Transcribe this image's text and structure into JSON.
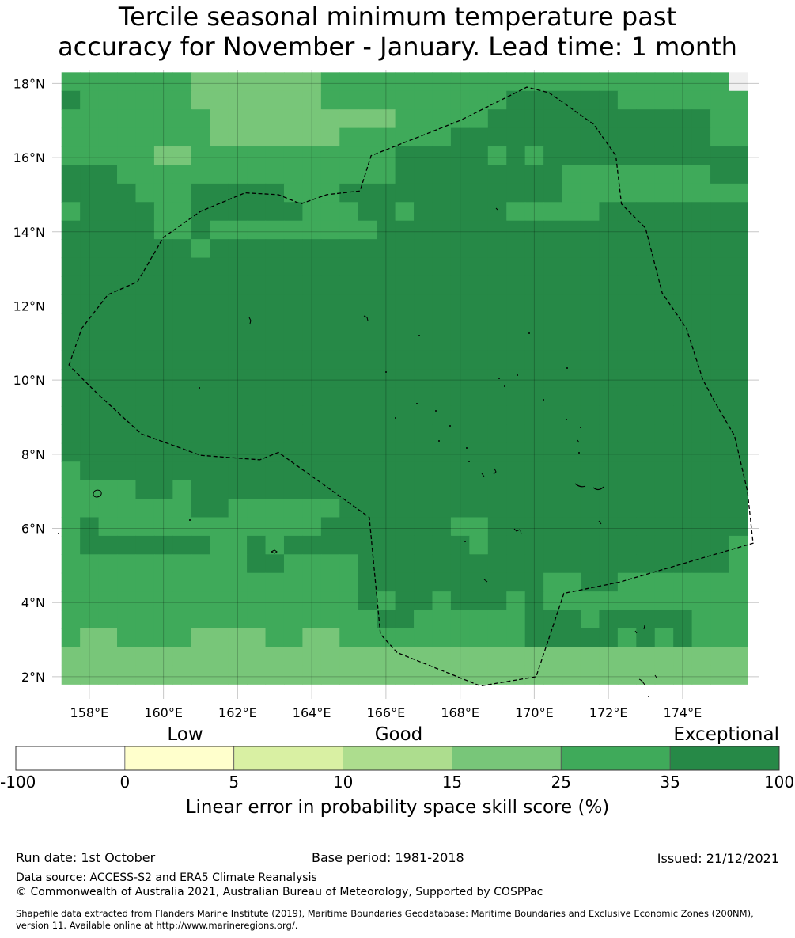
{
  "title": {
    "line1": "Tercile seasonal minimum temperature past",
    "line2": "accuracy for November - January. Lead time: 1 month"
  },
  "map": {
    "lon_min": 157,
    "lon_max": 176.05,
    "lat_min": 1.4,
    "lat_max": 18.35,
    "cell_deg": 0.5,
    "grid_origin_lon": 157.5,
    "grid_origin_lat": 18.05,
    "grid_cols": 37,
    "grid_rows": 33,
    "levels": [
      "#3faa5a",
      "#268947",
      "#78c679",
      "#f0f0f0"
    ],
    "grid": [
      "0000000222222200000000000000000000003",
      "1000000222222200000000001111110000000",
      "0000000022222222220000011111111111100",
      "0000000022222220000001111111111111100",
      "0000022000000000001111101011111111111",
      "1110000000000000001111111110000000011",
      "1111000111110001111111111110000000000",
      "0111100111111000110111110000011111111",
      "1111100100000000011111111111111111111",
      "1111111011111111111111111111111111111",
      "1111111111111111111111111111111111111",
      "1111111111111111111111111111111111111",
      "1111111111111111111111111111111111111",
      "1111111111111111111111111111111111111",
      "1111111111111111111111111111111111111",
      "1111111111111111111111111111111111111",
      "1111111111111111111111111111111111111",
      "1111111111111111111111111111111111111",
      "1111111111111111111111111111111111111",
      "1111111111111111111111111111111111111",
      "1111111111111111111111111111111111111",
      "0111111111111111111111111111111111111",
      "0000110111111111111111111111111111111",
      "0000000110000001111111111111111111111",
      "0100000000000011111110011111111111111",
      "0111111100101111111111011111111111110",
      "0000000000110000111111111111111111110",
      "0000000000000000111111111100110000000",
      "0000000000000000101101110100000000000",
      "0000000000000000011000000111011111000",
      "0220000222200220000000000111110101000",
      "2222222222222222222222222222222222222",
      "2222222222222222222222222222222222222"
    ],
    "x_ticks": [
      "158°E",
      "160°E",
      "162°E",
      "164°E",
      "166°E",
      "168°E",
      "170°E",
      "172°E",
      "174°E"
    ],
    "x_tick_values": [
      158,
      160,
      162,
      164,
      166,
      168,
      170,
      172,
      174
    ],
    "y_ticks": [
      "18°N",
      "16°N",
      "14°N",
      "12°N",
      "10°N",
      "8°N",
      "6°N",
      "4°N",
      "2°N"
    ],
    "y_tick_values": [
      18,
      16,
      14,
      12,
      10,
      8,
      6,
      4,
      2
    ],
    "eez_boundary": [
      [
        157.45,
        10.4
      ],
      [
        157.8,
        11.4
      ],
      [
        158.5,
        12.3
      ],
      [
        159.3,
        12.65
      ],
      [
        160.0,
        13.85
      ],
      [
        161.0,
        14.55
      ],
      [
        162.2,
        15.05
      ],
      [
        163.1,
        15.0
      ],
      [
        163.7,
        14.75
      ],
      [
        164.4,
        15.0
      ],
      [
        165.3,
        15.1
      ],
      [
        165.6,
        16.05
      ],
      [
        168.0,
        17.0
      ],
      [
        169.8,
        17.9
      ],
      [
        170.4,
        17.75
      ],
      [
        171.6,
        16.9
      ],
      [
        172.2,
        16.05
      ],
      [
        172.35,
        14.75
      ],
      [
        173.0,
        14.1
      ],
      [
        173.45,
        12.35
      ],
      [
        174.1,
        11.4
      ],
      [
        174.55,
        10.0
      ],
      [
        174.9,
        9.35
      ],
      [
        175.4,
        8.5
      ],
      [
        175.75,
        7.0
      ],
      [
        175.9,
        5.6
      ],
      [
        172.3,
        4.55
      ],
      [
        170.8,
        4.25
      ],
      [
        170.05,
        2.0
      ],
      [
        168.55,
        1.75
      ],
      [
        166.3,
        2.65
      ],
      [
        165.85,
        3.15
      ],
      [
        165.55,
        6.3
      ],
      [
        163.1,
        8.05
      ],
      [
        162.6,
        7.85
      ],
      [
        161.0,
        7.97
      ],
      [
        159.4,
        8.55
      ],
      [
        158.2,
        9.65
      ],
      [
        157.45,
        10.4
      ]
    ]
  },
  "colorbar": {
    "words": [
      "Low",
      "Good",
      "Exceptional"
    ],
    "ticks": [
      "-100",
      "0",
      "5",
      "10",
      "15",
      "25",
      "35",
      "100"
    ],
    "colors": [
      "#ffffff",
      "#ffffcc",
      "#d9f0a3",
      "#addd8e",
      "#78c679",
      "#3faa5a",
      "#268947"
    ],
    "label": "Linear error in probability space skill score (%)"
  },
  "footer": {
    "run_date": "Run date: 1st October",
    "base_period": "Base period: 1981-2018",
    "issued": "Issued: 21/12/2021",
    "data_source": "Data source: ACCESS-S2 and ERA5 Climate Reanalysis",
    "copyright": "© Commonwealth of Australia 2021, Australian Bureau of Meteorology, Supported by COSPPac",
    "shapefile_line1": "Shapefile data extracted from Flanders Marine Institute (2019), Maritime Boundaries Geodatabase: Maritime Boundaries and Exclusive Economic Zones (200NM),",
    "shapefile_line2": "version 11. Available online at http://www.marineregions.org/."
  }
}
